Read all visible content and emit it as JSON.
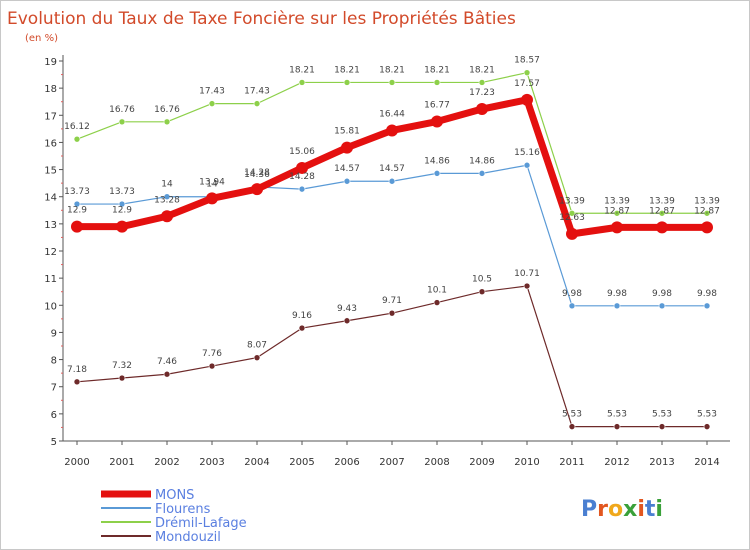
{
  "chart_data": {
    "type": "line",
    "title": "Evolution du Taux de Taxe Foncière sur les Propriétés Bâties",
    "subtitle": "(en %)",
    "xlabel": "",
    "ylabel": "",
    "ylim": [
      5,
      19
    ],
    "yticks": [
      5,
      6,
      7,
      8,
      9,
      10,
      11,
      12,
      13,
      14,
      15,
      16,
      17,
      18,
      19
    ],
    "grid": false,
    "legend_position": "bottom-left",
    "categories": [
      "2000",
      "2001",
      "2002",
      "2003",
      "2004",
      "2005",
      "2006",
      "2007",
      "2008",
      "2009",
      "2010",
      "2011",
      "2012",
      "2013",
      "2014"
    ],
    "series": [
      {
        "name": "MONS",
        "color": "#e4100f",
        "values": [
          12.9,
          12.9,
          13.28,
          13.94,
          14.28,
          15.06,
          15.81,
          16.44,
          16.77,
          17.23,
          17.57,
          12.63,
          12.87,
          12.87,
          12.87
        ],
        "labels": [
          "12.9",
          "12.9",
          "13.28",
          "13.94",
          "14.28",
          "15.06",
          "15.81",
          "16.44",
          "16.77",
          "17.23",
          "17.57",
          "12.63",
          "12.87",
          "12.87",
          "12.87"
        ]
      },
      {
        "name": "Flourens",
        "color": "#5a9ad6",
        "values": [
          13.73,
          13.73,
          14,
          14,
          14.36,
          14.28,
          14.57,
          14.57,
          14.86,
          14.86,
          15.16,
          9.98,
          9.98,
          9.98,
          9.98
        ],
        "labels": [
          "13.73",
          "13.73",
          "14",
          "14",
          "14.36",
          "14.28",
          "14.57",
          "14.57",
          "14.86",
          "14.86",
          "15.16",
          "9.98",
          "9.98",
          "9.98",
          "9.98"
        ]
      },
      {
        "name": "Drémil-Lafage",
        "color": "#8dd04a",
        "values": [
          16.12,
          16.76,
          16.76,
          17.43,
          17.43,
          18.21,
          18.21,
          18.21,
          18.21,
          18.21,
          18.57,
          13.39,
          13.39,
          13.39,
          13.39
        ],
        "labels": [
          "16.12",
          "16.76",
          "16.76",
          "17.43",
          "17.43",
          "18.21",
          "18.21",
          "18.21",
          "18.21",
          "18.21",
          "18.57",
          "13.39",
          "13.39",
          "13.39",
          "13.39"
        ]
      },
      {
        "name": "Mondouzil",
        "color": "#6e2a2a",
        "values": [
          7.18,
          7.32,
          7.46,
          7.76,
          8.07,
          9.16,
          9.43,
          9.71,
          10.1,
          10.5,
          10.71,
          5.53,
          5.53,
          5.53,
          5.53
        ],
        "labels": [
          "7.18",
          "7.32",
          "7.46",
          "7.76",
          "8.07",
          "9.16",
          "9.43",
          "9.71",
          "10.1",
          "10.5",
          "10.71",
          "5.53",
          "5.53",
          "5.53",
          "5.53"
        ]
      }
    ]
  },
  "logo": {
    "letters": [
      "P",
      "r",
      "o",
      "x",
      "i",
      "t",
      "i"
    ],
    "colors": [
      "#4a7fd1",
      "#e2561f",
      "#f0a81c",
      "#3aa13a",
      "#e2561f",
      "#4a7fd1",
      "#3aa13a"
    ]
  }
}
